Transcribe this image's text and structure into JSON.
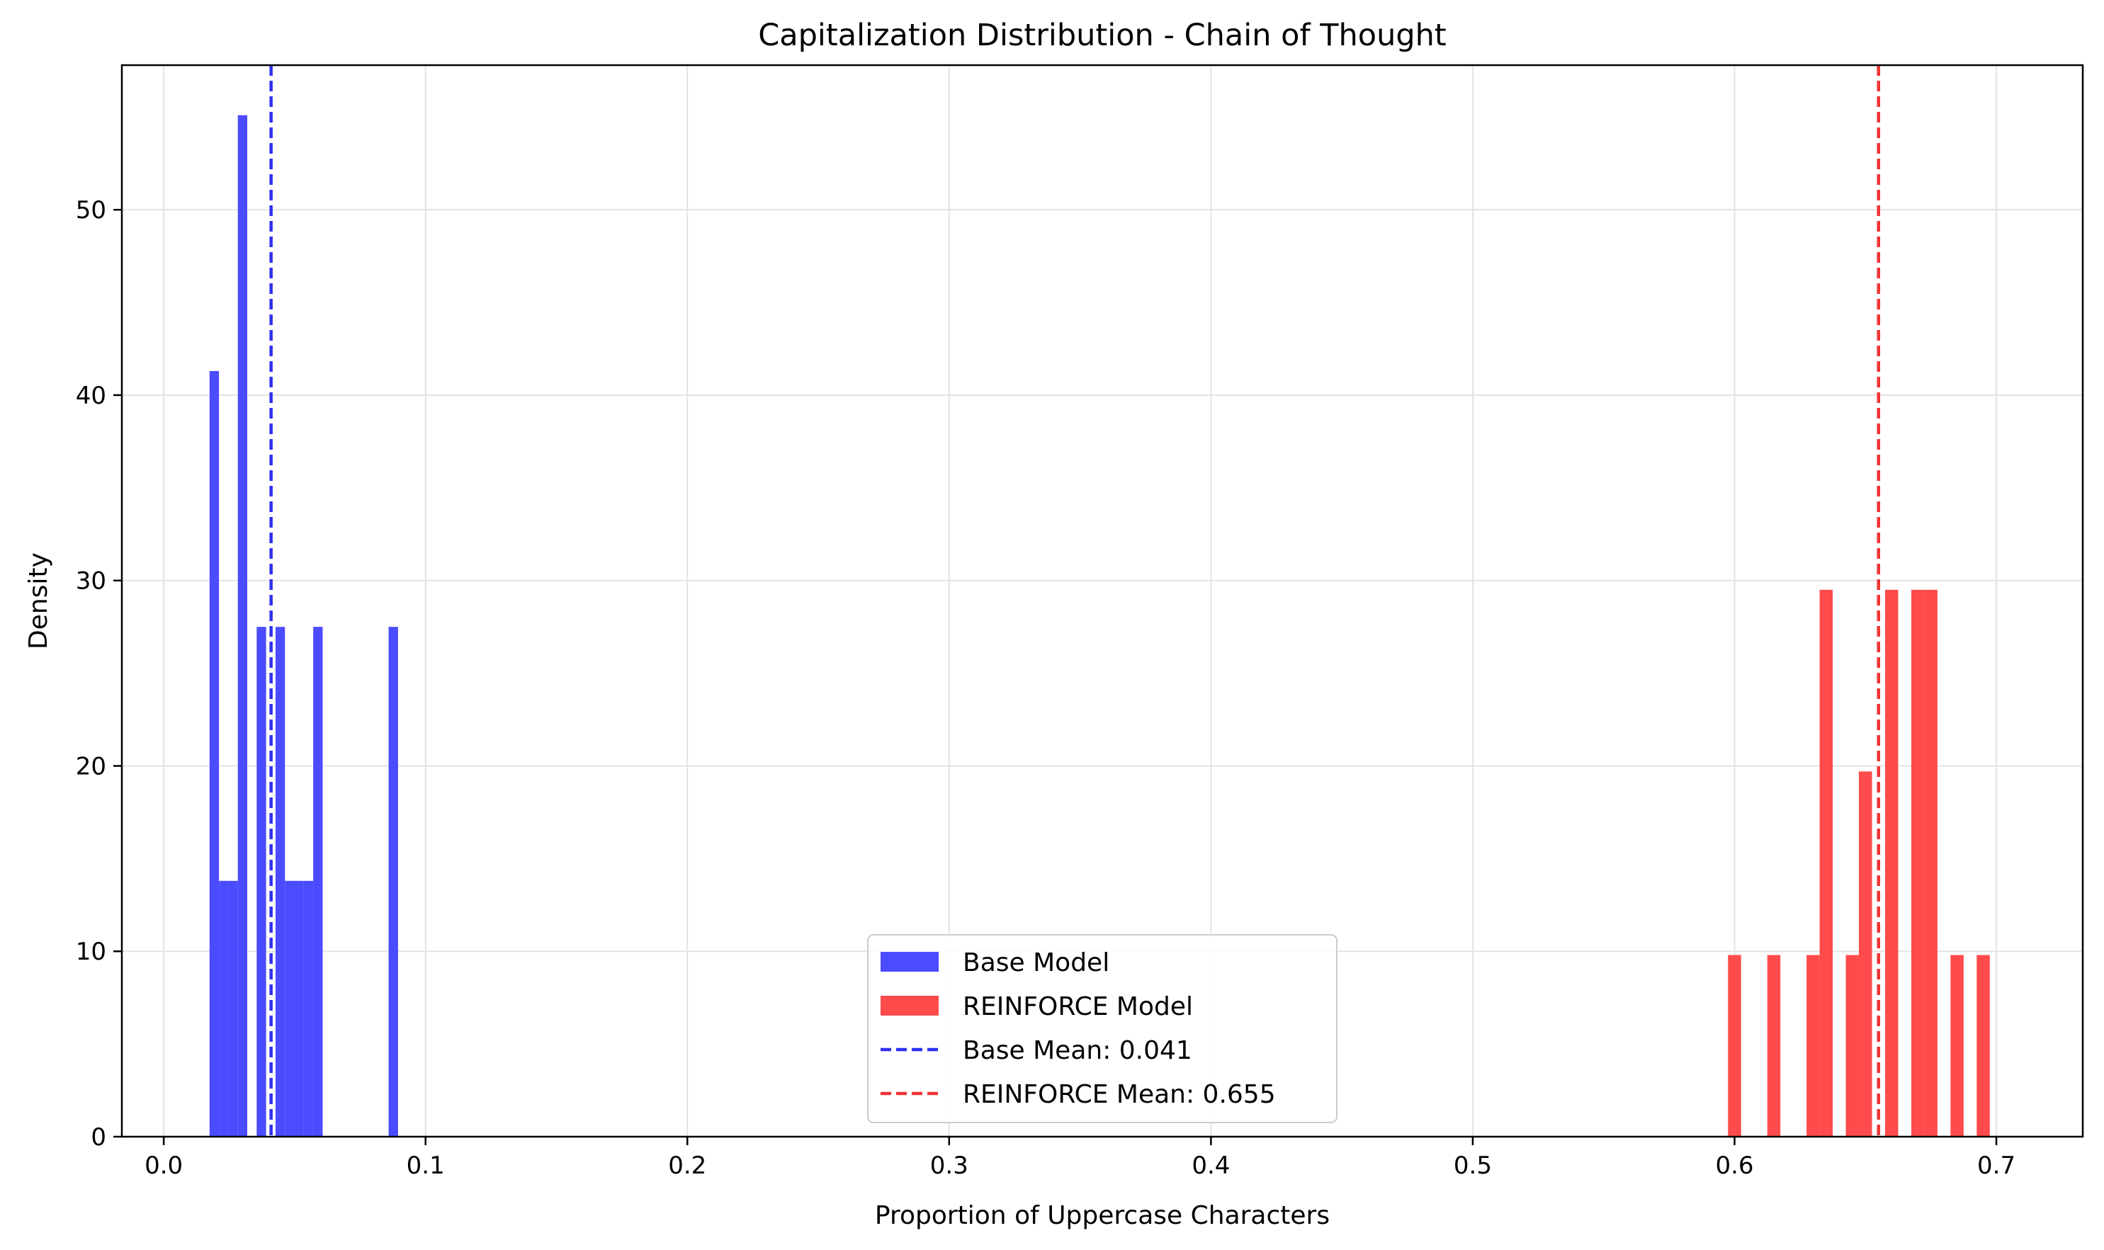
{
  "chart_data": {
    "type": "bar",
    "title": "Capitalization Distribution - Chain of Thought",
    "xlabel": "Proportion of Uppercase Characters",
    "ylabel": "Density",
    "xlim": [
      -0.016,
      0.733
    ],
    "ylim": [
      0,
      57.8
    ],
    "xticks": [
      0.0,
      0.1,
      0.2,
      0.3,
      0.4,
      0.5,
      0.6,
      0.7
    ],
    "xtick_labels": [
      "0.0",
      "0.1",
      "0.2",
      "0.3",
      "0.4",
      "0.5",
      "0.6",
      "0.7"
    ],
    "yticks": [
      0,
      10,
      20,
      30,
      40,
      50
    ],
    "ytick_labels": [
      "0",
      "10",
      "20",
      "30",
      "40",
      "50"
    ],
    "grid": true,
    "legend_position": "lower-center",
    "series": [
      {
        "name": "Base Model",
        "color": "#4b4bff",
        "bins": [
          {
            "x0": 0.0175,
            "x1": 0.0211,
            "y": 41.3
          },
          {
            "x0": 0.0211,
            "x1": 0.0247,
            "y": 13.8
          },
          {
            "x0": 0.0247,
            "x1": 0.0283,
            "y": 13.8
          },
          {
            "x0": 0.0283,
            "x1": 0.0319,
            "y": 55.1
          },
          {
            "x0": 0.0355,
            "x1": 0.0391,
            "y": 27.5
          },
          {
            "x0": 0.0427,
            "x1": 0.0463,
            "y": 27.5
          },
          {
            "x0": 0.0463,
            "x1": 0.0499,
            "y": 13.8
          },
          {
            "x0": 0.0499,
            "x1": 0.0535,
            "y": 13.8
          },
          {
            "x0": 0.0535,
            "x1": 0.0571,
            "y": 13.8
          },
          {
            "x0": 0.0571,
            "x1": 0.0607,
            "y": 27.5
          },
          {
            "x0": 0.0859,
            "x1": 0.0895,
            "y": 27.5
          }
        ]
      },
      {
        "name": "REINFORCE Model",
        "color": "#ff4b4b",
        "bins": [
          {
            "x0": 0.5975,
            "x1": 0.6025,
            "y": 9.8
          },
          {
            "x0": 0.6125,
            "x1": 0.6175,
            "y": 9.8
          },
          {
            "x0": 0.6275,
            "x1": 0.6325,
            "y": 9.8
          },
          {
            "x0": 0.6325,
            "x1": 0.6375,
            "y": 29.5
          },
          {
            "x0": 0.6425,
            "x1": 0.6475,
            "y": 9.8
          },
          {
            "x0": 0.6475,
            "x1": 0.6525,
            "y": 19.7
          },
          {
            "x0": 0.6575,
            "x1": 0.6625,
            "y": 29.5
          },
          {
            "x0": 0.6675,
            "x1": 0.6725,
            "y": 29.5
          },
          {
            "x0": 0.6725,
            "x1": 0.6775,
            "y": 29.5
          },
          {
            "x0": 0.6825,
            "x1": 0.6875,
            "y": 9.8
          },
          {
            "x0": 0.6925,
            "x1": 0.6975,
            "y": 9.8
          }
        ]
      }
    ],
    "mean_lines": [
      {
        "name": "Base Mean: 0.041",
        "value": 0.041,
        "color": "#2f2ff0"
      },
      {
        "name": "REINFORCE Mean: 0.655",
        "value": 0.655,
        "color": "#f03434"
      }
    ]
  }
}
